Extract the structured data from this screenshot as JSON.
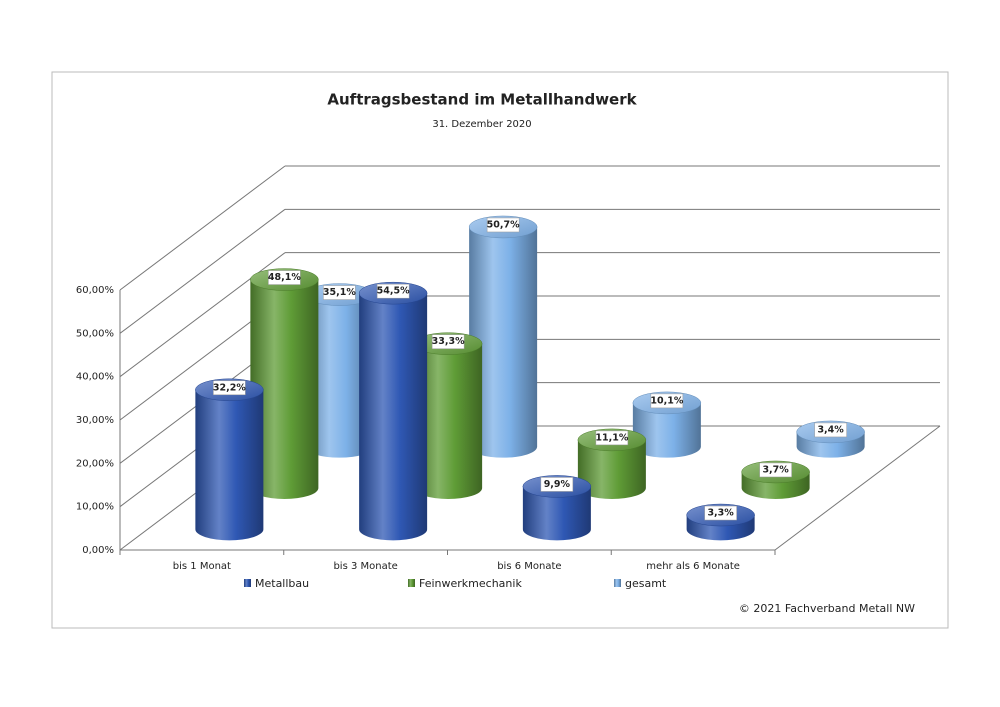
{
  "chart_data": {
    "type": "bar3d",
    "title": "Auftragsbestand im Metallhandwerk",
    "subtitle": "31. Dezember 2020",
    "categories": [
      "bis 1 Monat",
      "bis 3 Monate",
      "bis 6 Monate",
      "mehr als 6 Monate"
    ],
    "series": [
      {
        "name": "Metallbau",
        "color": "#2f58b4",
        "values": [
          32.2,
          54.5,
          9.9,
          3.3
        ],
        "value_labels": [
          "32,2%",
          "54,5%",
          "9,9%",
          "3,3%"
        ]
      },
      {
        "name": "Feinwerkmechanik",
        "color": "#5f9c36",
        "values": [
          48.1,
          33.3,
          11.1,
          3.7
        ],
        "value_labels": [
          "48,1%",
          "33,3%",
          "11,1%",
          "3,7%"
        ]
      },
      {
        "name": "gesamt",
        "color": "#7db1e8",
        "values": [
          35.1,
          50.7,
          10.1,
          3.4
        ],
        "value_labels": [
          "35,1%",
          "50,7%",
          "10,1%",
          "3,4%"
        ]
      }
    ],
    "ylim": [
      0,
      60
    ],
    "yticks": [
      {
        "value": 0,
        "label": "0,00%"
      },
      {
        "value": 10,
        "label": "10,00%"
      },
      {
        "value": 20,
        "label": "20,00%"
      },
      {
        "value": 30,
        "label": "30,00%"
      },
      {
        "value": 40,
        "label": "40,00%"
      },
      {
        "value": 50,
        "label": "50,00%"
      },
      {
        "value": 60,
        "label": "60,00%"
      }
    ],
    "grid": true,
    "legend_position": "bottom",
    "annotation": "© 2021 Fachverband Metall NW"
  }
}
